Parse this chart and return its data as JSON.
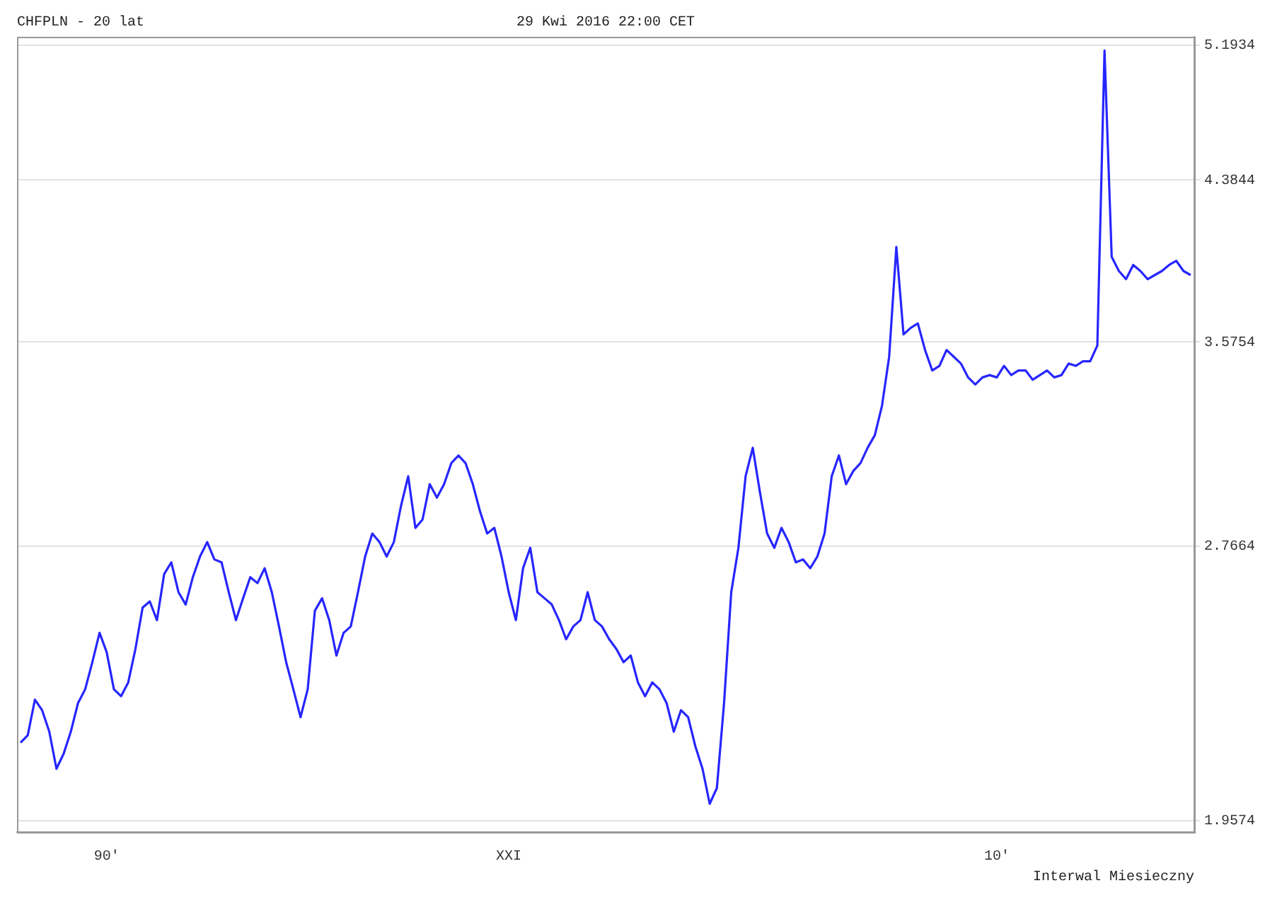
{
  "chart_data": {
    "type": "line",
    "title": "CHFPLN - 20 lat",
    "subtitle": "29 Kwi 2016 22:00 CET",
    "annotations": [
      "Interwal Miesieczny"
    ],
    "categories": [
      null,
      null,
      null,
      null,
      null,
      null,
      null,
      null,
      null,
      null,
      null,
      null,
      "90'",
      null,
      null,
      null,
      null,
      null,
      null,
      null,
      null,
      null,
      null,
      null,
      null,
      null,
      null,
      null,
      null,
      null,
      null,
      null,
      null,
      null,
      null,
      null,
      null,
      null,
      null,
      null,
      null,
      null,
      null,
      null,
      null,
      null,
      null,
      null,
      null,
      null,
      null,
      null,
      null,
      null,
      null,
      null,
      null,
      null,
      null,
      null,
      null,
      null,
      null,
      null,
      null,
      null,
      null,
      null,
      "XXI",
      null,
      null,
      null,
      null,
      null,
      null,
      null,
      null,
      null,
      null,
      null,
      null,
      null,
      null,
      null,
      null,
      null,
      null,
      null,
      null,
      null,
      null,
      null,
      null,
      null,
      null,
      null,
      null,
      null,
      null,
      null,
      null,
      null,
      null,
      null,
      null,
      null,
      null,
      null,
      null,
      null,
      null,
      null,
      null,
      null,
      null,
      null,
      null,
      null,
      null,
      null,
      null,
      null,
      null,
      null,
      null,
      null,
      null,
      null,
      null,
      null,
      null,
      null,
      null,
      null,
      null,
      null,
      "10'",
      null,
      null,
      null,
      null,
      null,
      null,
      null,
      null,
      null,
      null,
      null,
      null,
      null,
      null,
      null,
      null,
      null,
      null,
      null,
      null,
      null,
      null,
      null,
      null,
      null,
      null,
      null
    ],
    "series": [
      {
        "color": "#2626ff",
        "values": [
          2.16,
          2.18,
          2.28,
          2.25,
          2.19,
          2.09,
          2.13,
          2.19,
          2.27,
          2.31,
          2.39,
          2.48,
          2.42,
          2.31,
          2.29,
          2.33,
          2.43,
          2.56,
          2.58,
          2.52,
          2.67,
          2.71,
          2.61,
          2.57,
          2.66,
          2.73,
          2.78,
          2.72,
          2.71,
          2.61,
          2.52,
          2.59,
          2.66,
          2.64,
          2.69,
          2.61,
          2.5,
          2.39,
          2.31,
          2.23,
          2.31,
          2.55,
          2.59,
          2.52,
          2.41,
          2.48,
          2.5,
          2.61,
          2.73,
          2.81,
          2.78,
          2.73,
          2.78,
          2.91,
          3.02,
          2.83,
          2.86,
          2.99,
          2.94,
          2.99,
          3.07,
          3.1,
          3.07,
          2.99,
          2.89,
          2.81,
          2.83,
          2.73,
          2.61,
          2.52,
          2.69,
          2.76,
          2.61,
          2.59,
          2.57,
          2.52,
          2.46,
          2.5,
          2.52,
          2.61,
          2.52,
          2.5,
          2.46,
          2.43,
          2.39,
          2.41,
          2.33,
          2.29,
          2.33,
          2.31,
          2.27,
          2.19,
          2.25,
          2.23,
          2.15,
          2.09,
          2.0,
          2.04,
          2.27,
          2.61,
          2.76,
          3.02,
          3.13,
          2.96,
          2.81,
          2.76,
          2.83,
          2.78,
          2.71,
          2.72,
          2.69,
          2.73,
          2.81,
          3.02,
          3.1,
          2.99,
          3.04,
          3.07,
          3.13,
          3.18,
          3.3,
          3.51,
          4.03,
          3.61,
          3.64,
          3.66,
          3.54,
          3.45,
          3.47,
          3.54,
          3.51,
          3.48,
          3.42,
          3.39,
          3.42,
          3.43,
          3.42,
          3.47,
          3.43,
          3.45,
          3.45,
          3.41,
          3.43,
          3.45,
          3.42,
          3.43,
          3.48,
          3.47,
          3.49,
          3.49,
          3.56,
          5.16,
          3.98,
          3.91,
          3.87,
          3.94,
          3.91,
          3.87,
          3.89,
          3.91,
          3.94,
          3.96,
          3.91,
          3.89
        ]
      }
    ],
    "ylim": [
      1.93,
      5.25
    ],
    "yticks": [
      {
        "value": 1.9574,
        "label": "1.9574"
      },
      {
        "value": 2.7664,
        "label": "2.7664"
      },
      {
        "value": 3.5754,
        "label": "3.5754"
      },
      {
        "value": 4.3844,
        "label": "4.3844"
      },
      {
        "value": 5.1934,
        "label": "5.1934"
      }
    ],
    "log": "y",
    "grid": "y",
    "legend": false,
    "marker": "none",
    "line_style": "solid"
  }
}
